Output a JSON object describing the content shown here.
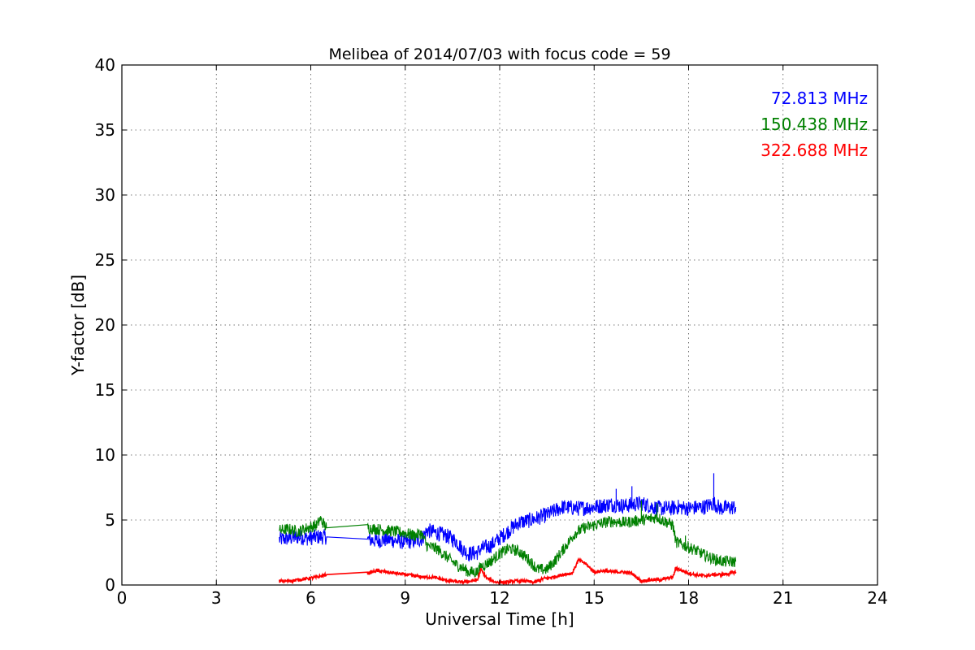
{
  "chart_data": {
    "type": "line",
    "title": "Melibea of 2014/07/03 with focus code = 59",
    "xlabel": "Universal Time [h]",
    "ylabel": "Y-factor [dB]",
    "xlim": [
      0,
      24
    ],
    "ylim": [
      0,
      40
    ],
    "xticks": [
      0,
      3,
      6,
      9,
      12,
      15,
      18,
      21,
      24
    ],
    "yticks": [
      0,
      5,
      10,
      15,
      20,
      25,
      30,
      35,
      40
    ],
    "grid": true,
    "legend_position": "top-right",
    "series": [
      {
        "name": "72.813 MHz",
        "color": "#0000ff",
        "points": [
          [
            5.0,
            3.5
          ],
          [
            5.3,
            3.6
          ],
          [
            5.6,
            3.7
          ],
          [
            5.9,
            3.6
          ],
          [
            6.2,
            3.7
          ],
          [
            6.5,
            3.7
          ],
          [
            7.8,
            3.5
          ],
          [
            8.1,
            3.4
          ],
          [
            8.4,
            3.5
          ],
          [
            8.7,
            3.4
          ],
          [
            9.0,
            3.3
          ],
          [
            9.3,
            3.4
          ],
          [
            9.5,
            3.5
          ],
          [
            9.7,
            4.2
          ],
          [
            10.0,
            4.0
          ],
          [
            10.3,
            3.8
          ],
          [
            10.6,
            3.4
          ],
          [
            10.8,
            2.8
          ],
          [
            11.0,
            2.4
          ],
          [
            11.3,
            2.5
          ],
          [
            11.4,
            2.8
          ],
          [
            11.7,
            3.0
          ],
          [
            12.0,
            3.6
          ],
          [
            12.3,
            4.2
          ],
          [
            12.6,
            4.8
          ],
          [
            13.0,
            5.0
          ],
          [
            13.5,
            5.4
          ],
          [
            14.0,
            6.0
          ],
          [
            14.5,
            5.9
          ],
          [
            15.0,
            6.0
          ],
          [
            15.5,
            6.2
          ],
          [
            16.0,
            6.1
          ],
          [
            16.5,
            6.3
          ],
          [
            17.0,
            5.9
          ],
          [
            17.5,
            5.9
          ],
          [
            17.6,
            6.0
          ],
          [
            18.0,
            5.9
          ],
          [
            18.5,
            6.0
          ],
          [
            18.8,
            6.3
          ],
          [
            19.0,
            5.9
          ],
          [
            19.5,
            6.0
          ]
        ],
        "spikes": [
          [
            16.2,
            7.6
          ],
          [
            18.8,
            8.6
          ],
          [
            15.7,
            7.4
          ]
        ]
      },
      {
        "name": "150.438 MHz",
        "color": "#008000",
        "points": [
          [
            5.0,
            4.2
          ],
          [
            5.3,
            4.3
          ],
          [
            5.6,
            4.1
          ],
          [
            5.9,
            4.4
          ],
          [
            6.2,
            4.6
          ],
          [
            6.3,
            5.1
          ],
          [
            6.5,
            4.4
          ],
          [
            7.8,
            4.4
          ],
          [
            8.1,
            4.3
          ],
          [
            8.4,
            4.2
          ],
          [
            8.7,
            4.1
          ],
          [
            9.0,
            4.0
          ],
          [
            9.3,
            3.8
          ],
          [
            9.5,
            4.0
          ],
          [
            9.7,
            3.0
          ],
          [
            10.0,
            2.8
          ],
          [
            10.3,
            2.2
          ],
          [
            10.6,
            1.6
          ],
          [
            10.9,
            1.2
          ],
          [
            11.0,
            1.0
          ],
          [
            11.3,
            1.0
          ],
          [
            11.4,
            1.4
          ],
          [
            11.7,
            1.8
          ],
          [
            12.0,
            2.4
          ],
          [
            12.3,
            2.8
          ],
          [
            12.6,
            2.6
          ],
          [
            12.9,
            2.0
          ],
          [
            13.2,
            1.2
          ],
          [
            13.5,
            1.2
          ],
          [
            13.8,
            2.0
          ],
          [
            14.1,
            3.0
          ],
          [
            14.4,
            4.0
          ],
          [
            14.7,
            4.4
          ],
          [
            15.0,
            4.6
          ],
          [
            15.5,
            4.9
          ],
          [
            16.0,
            4.8
          ],
          [
            16.5,
            5.0
          ],
          [
            17.0,
            5.2
          ],
          [
            17.5,
            4.6
          ],
          [
            17.6,
            3.3
          ],
          [
            17.9,
            3.0
          ],
          [
            18.2,
            2.7
          ],
          [
            18.5,
            2.3
          ],
          [
            18.8,
            2.0
          ],
          [
            19.1,
            1.8
          ],
          [
            19.5,
            1.8
          ]
        ],
        "spikes": [
          [
            16.5,
            6.5
          ],
          [
            17.0,
            6.3
          ],
          [
            17.9,
            3.8
          ]
        ]
      },
      {
        "name": "322.688 MHz",
        "color": "#ff0000",
        "points": [
          [
            5.0,
            0.3
          ],
          [
            5.3,
            0.3
          ],
          [
            5.6,
            0.4
          ],
          [
            5.9,
            0.5
          ],
          [
            6.2,
            0.6
          ],
          [
            6.5,
            0.8
          ],
          [
            7.8,
            0.9
          ],
          [
            8.1,
            1.1
          ],
          [
            8.4,
            1.0
          ],
          [
            8.7,
            0.9
          ],
          [
            9.0,
            0.8
          ],
          [
            9.3,
            0.7
          ],
          [
            9.6,
            0.6
          ],
          [
            9.9,
            0.6
          ],
          [
            10.2,
            0.4
          ],
          [
            10.5,
            0.3
          ],
          [
            10.8,
            0.2
          ],
          [
            11.1,
            0.3
          ],
          [
            11.3,
            0.4
          ],
          [
            11.4,
            1.2
          ],
          [
            11.6,
            0.5
          ],
          [
            11.9,
            0.2
          ],
          [
            12.2,
            0.2
          ],
          [
            12.5,
            0.3
          ],
          [
            12.8,
            0.3
          ],
          [
            13.1,
            0.2
          ],
          [
            13.4,
            0.5
          ],
          [
            13.7,
            0.6
          ],
          [
            14.0,
            0.8
          ],
          [
            14.3,
            0.9
          ],
          [
            14.5,
            1.9
          ],
          [
            14.7,
            1.7
          ],
          [
            15.0,
            1.0
          ],
          [
            15.3,
            1.1
          ],
          [
            15.6,
            1.0
          ],
          [
            15.9,
            1.0
          ],
          [
            16.2,
            0.9
          ],
          [
            16.5,
            0.3
          ],
          [
            16.8,
            0.4
          ],
          [
            17.1,
            0.4
          ],
          [
            17.5,
            0.6
          ],
          [
            17.6,
            1.3
          ],
          [
            17.9,
            1.0
          ],
          [
            18.2,
            0.8
          ],
          [
            18.5,
            0.7
          ],
          [
            18.8,
            0.8
          ],
          [
            19.1,
            0.8
          ],
          [
            19.5,
            1.0
          ]
        ],
        "spikes": []
      }
    ]
  }
}
